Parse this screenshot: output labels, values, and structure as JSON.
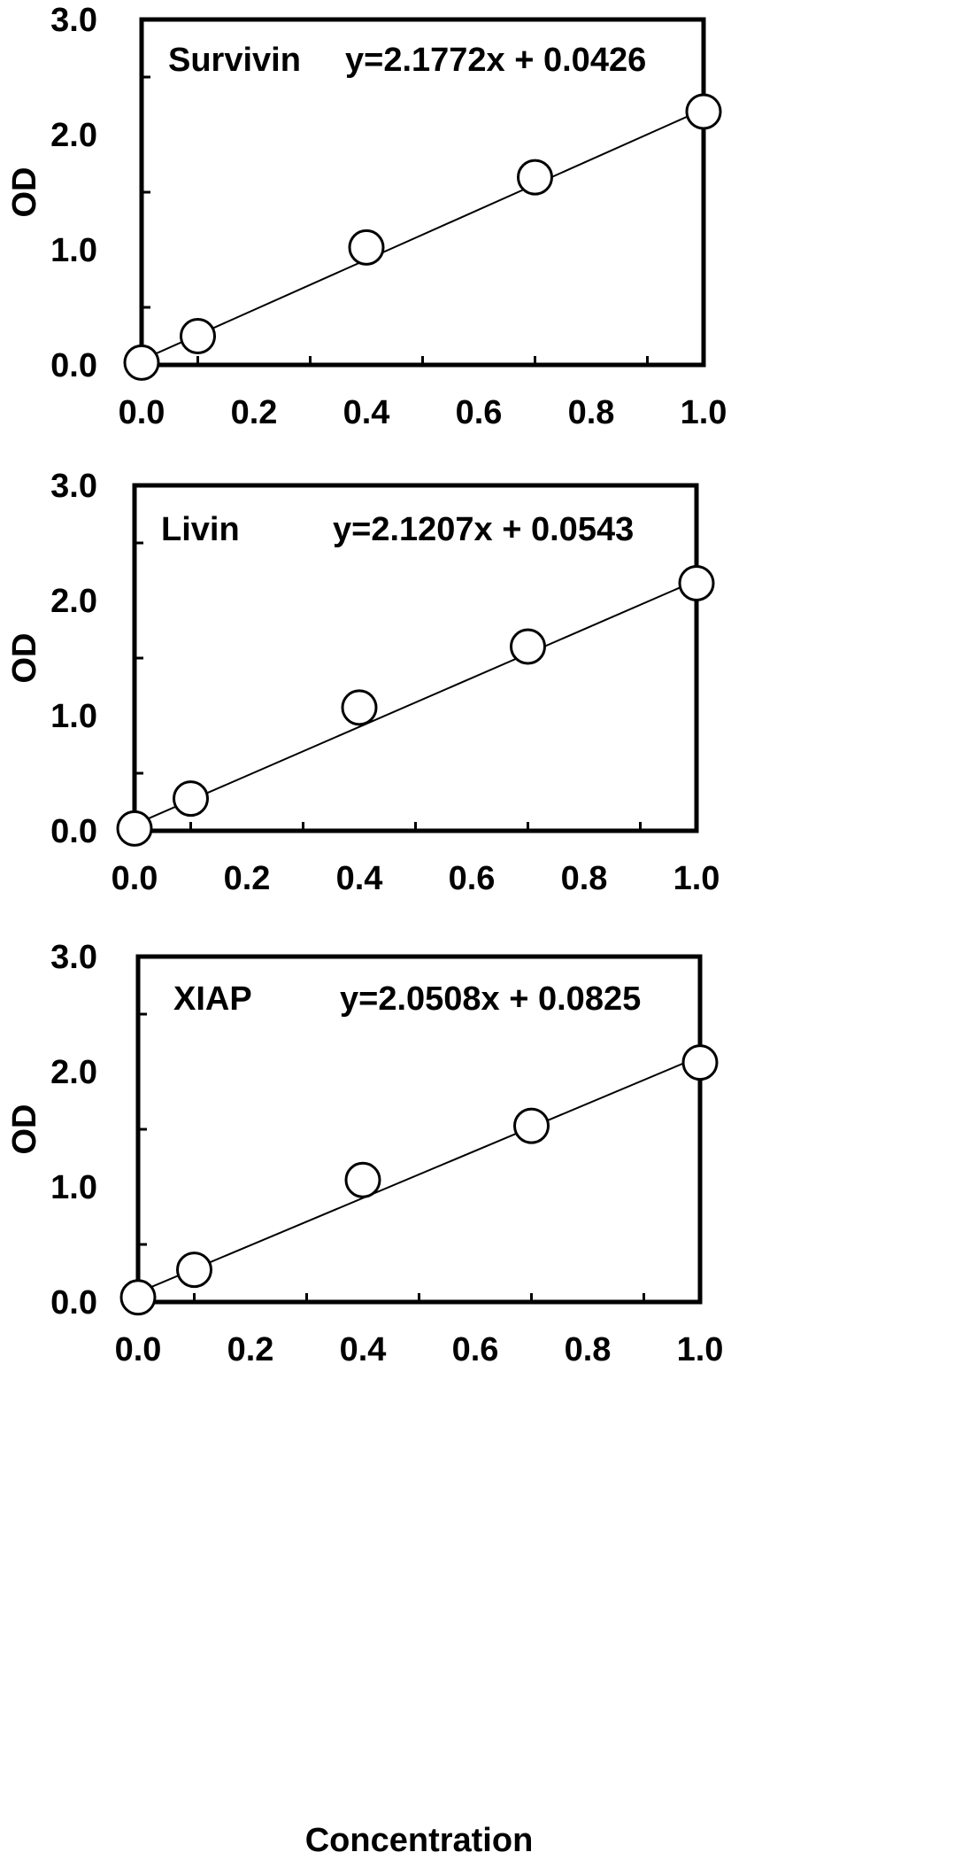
{
  "chart_data": [
    {
      "type": "scatter",
      "panel_name": "Survivin",
      "equation": "y=2.1772x + 0.0426",
      "ylabel": "OD",
      "xlabel": "",
      "xlim": [
        0.0,
        1.0
      ],
      "ylim": [
        0.0,
        3.0
      ],
      "x_ticks": [
        "0.0",
        "0.2",
        "0.4",
        "0.6",
        "0.8",
        "1.0"
      ],
      "y_ticks": [
        "0.0",
        "1.0",
        "2.0",
        "3.0"
      ],
      "grid": false,
      "x": [
        0.0,
        0.1,
        0.4,
        0.7,
        1.0
      ],
      "y": [
        0.02,
        0.25,
        1.02,
        1.63,
        2.2
      ],
      "fit": {
        "slope": 2.1772,
        "intercept": 0.0426
      }
    },
    {
      "type": "scatter",
      "panel_name": "Livin",
      "equation": "y=2.1207x + 0.0543",
      "ylabel": "OD",
      "xlabel": "",
      "xlim": [
        0.0,
        1.0
      ],
      "ylim": [
        0.0,
        3.0
      ],
      "x_ticks": [
        "0.0",
        "0.2",
        "0.4",
        "0.6",
        "0.8",
        "1.0"
      ],
      "y_ticks": [
        "0.0",
        "1.0",
        "2.0",
        "3.0"
      ],
      "grid": false,
      "x": [
        0.0,
        0.1,
        0.4,
        0.7,
        1.0
      ],
      "y": [
        0.02,
        0.28,
        1.07,
        1.6,
        2.15
      ],
      "fit": {
        "slope": 2.1207,
        "intercept": 0.0543
      }
    },
    {
      "type": "scatter",
      "panel_name": "XIAP",
      "equation": "y=2.0508x + 0.0825",
      "ylabel": "OD",
      "xlabel": "Concentration",
      "xlim": [
        0.0,
        1.0
      ],
      "ylim": [
        0.0,
        3.0
      ],
      "x_ticks": [
        "0.0",
        "0.2",
        "0.4",
        "0.6",
        "0.8",
        "1.0"
      ],
      "y_ticks": [
        "0.0",
        "1.0",
        "2.0",
        "3.0"
      ],
      "grid": false,
      "x": [
        0.0,
        0.1,
        0.4,
        0.7,
        1.0
      ],
      "y": [
        0.04,
        0.28,
        1.06,
        1.53,
        2.08
      ],
      "fit": {
        "slope": 2.0508,
        "intercept": 0.0825
      }
    }
  ]
}
